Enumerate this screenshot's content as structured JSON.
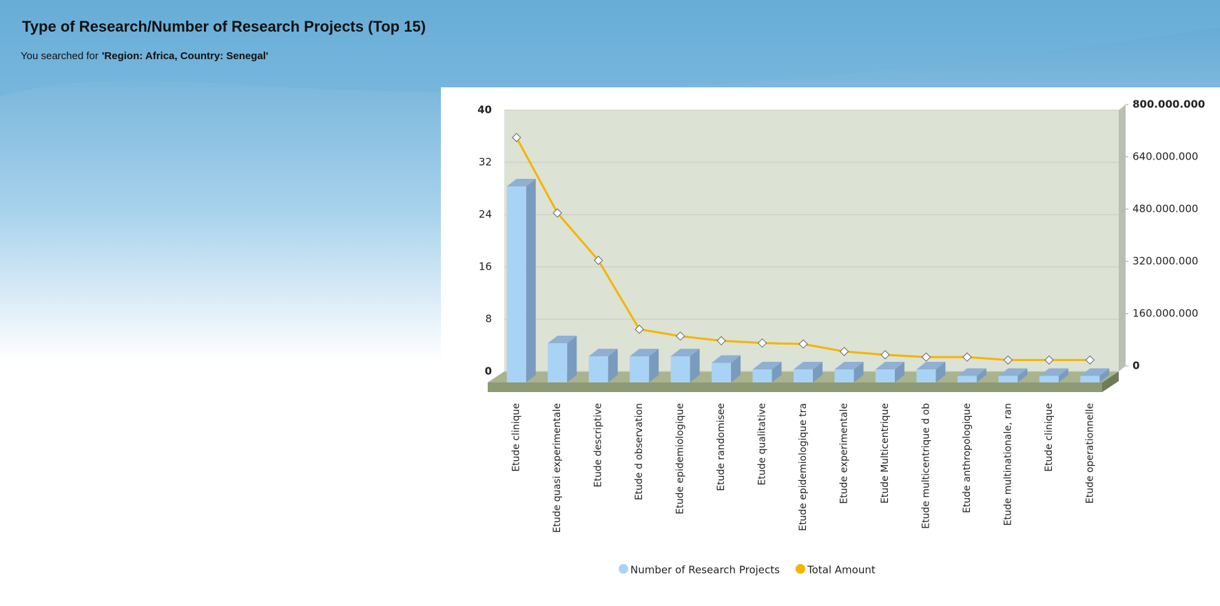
{
  "chart_data": {
    "type": "bar",
    "title": "Type of Research/Number of Research Projects (Top 15)",
    "subtitle": {
      "prefix": "You searched for",
      "query": "'Region: Africa, Country: Senegal'"
    },
    "categories": [
      "Etude clinique",
      "Etude quasi experimentale",
      "Etude descriptive",
      "Etude d observation",
      "Etude epidemiologique",
      "Etude randomisee",
      "Etude qualitative",
      "Etude epidemiologique tra",
      "Etude experimentale",
      "Etude Multicentrique",
      "Etude multicentrique d ob",
      "Etude anthropologique",
      "Etude multinationale, ran",
      "Etude clinique",
      "Etude operationnelle"
    ],
    "series": [
      {
        "name": "Number of Research Projects",
        "type": "bar",
        "color": "#a9d3f5",
        "values": [
          30,
          6,
          4,
          4,
          4,
          3,
          2,
          2,
          2,
          2,
          2,
          1,
          1,
          1,
          1
        ]
      },
      {
        "name": "Total Amount",
        "type": "line",
        "axis": "y2",
        "color": "#f5b400",
        "values": [
          716000000,
          485000000,
          340000000,
          129000000,
          108000000,
          94000000,
          87000000,
          84000000,
          61000000,
          51000000,
          44000000,
          44000000,
          35000000,
          35000000,
          35000000
        ]
      }
    ],
    "ylim": [
      0,
      40
    ],
    "yticks": [
      0,
      8,
      16,
      24,
      32,
      40
    ],
    "y2lim": [
      0,
      800000000
    ],
    "y2ticks": [
      0,
      {
        "value": 160000000,
        "label": "160.000.000"
      },
      {
        "value": 320000000,
        "label": "320.000.000"
      },
      {
        "value": 480000000,
        "label": "480.000.000"
      },
      {
        "value": 640000000,
        "label": "640.000.000"
      },
      {
        "value": 800000000,
        "label": "800.000.000"
      }
    ],
    "grid": true,
    "legend": "bottom"
  }
}
